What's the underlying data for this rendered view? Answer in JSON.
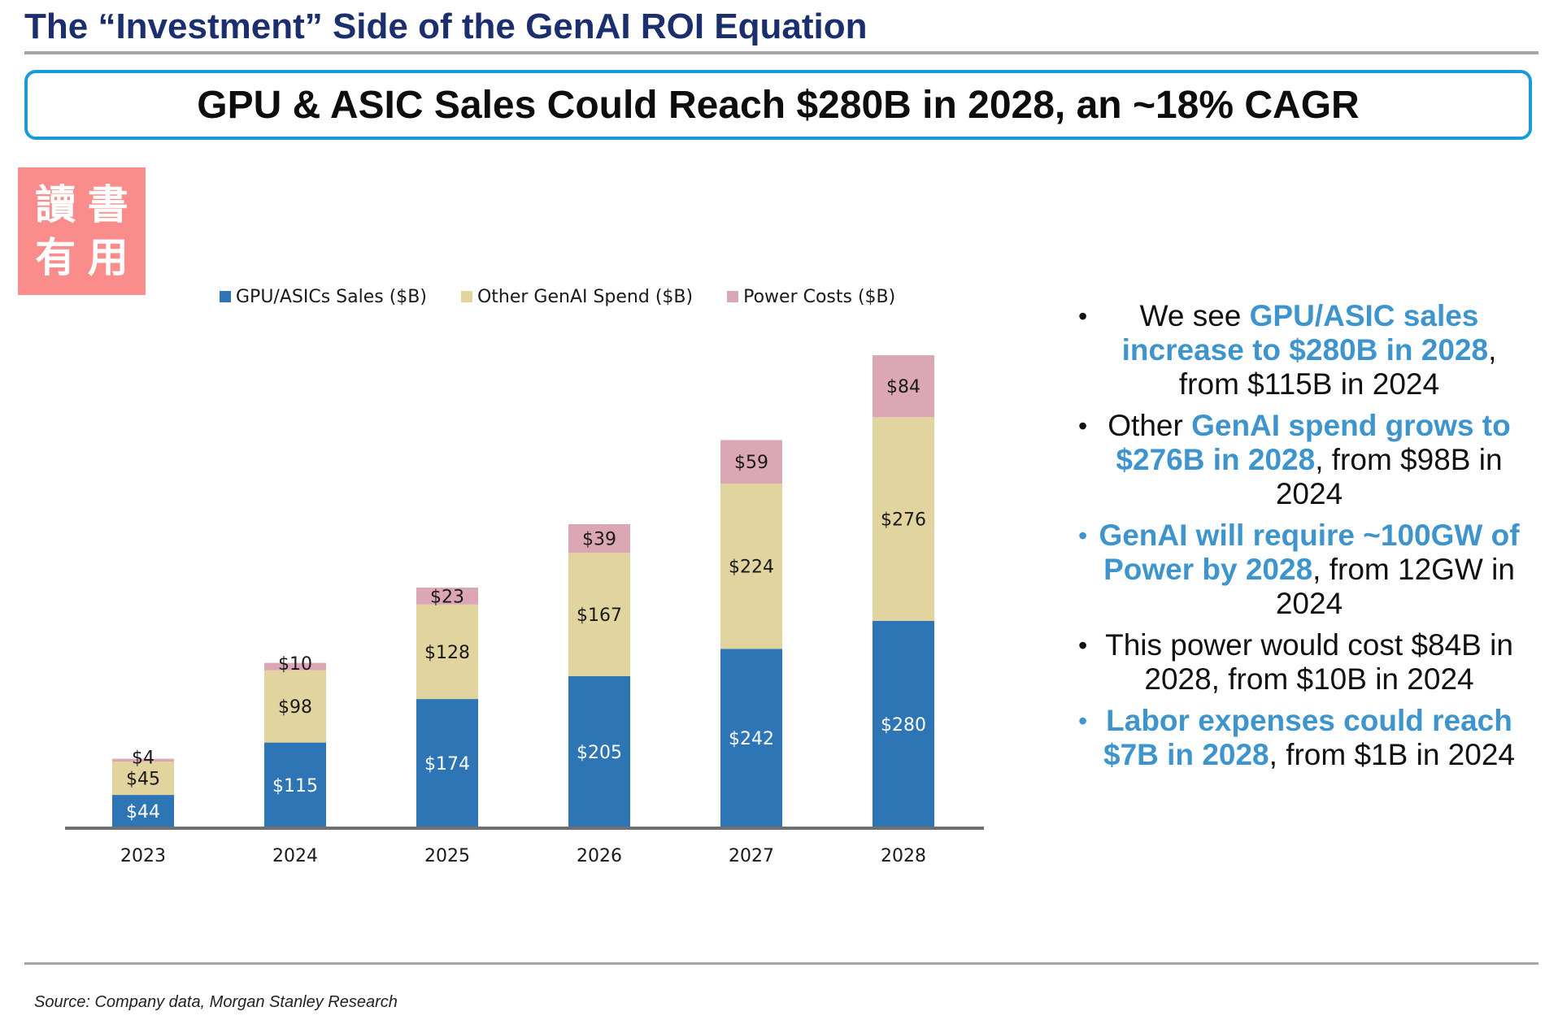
{
  "page": {
    "title": "The “Investment” Side of the GenAI ROI Equation",
    "headline": "GPU & ASIC Sales Could Reach $280B in 2028, an ~18% CAGR",
    "seal": [
      "讀",
      "書",
      "有",
      "用"
    ],
    "source": "Source: Company data, Morgan Stanley Research"
  },
  "chart_data": {
    "type": "bar",
    "stacked": true,
    "categories": [
      "2023",
      "2024",
      "2025",
      "2026",
      "2027",
      "2028"
    ],
    "series": [
      {
        "name": "GPU/ASICs Sales ($B)",
        "color": "#2e75b6",
        "label_color": "#ffffff",
        "values": [
          44,
          115,
          174,
          205,
          242,
          280
        ],
        "labels": [
          "$44",
          "$115",
          "$174",
          "$205",
          "$242",
          "$280"
        ]
      },
      {
        "name": "Other GenAI Spend ($B)",
        "color": "#e2d49e",
        "label_color": "#1a1a1a",
        "values": [
          45,
          98,
          128,
          167,
          224,
          276
        ],
        "labels": [
          "$45",
          "$98",
          "$128",
          "$167",
          "$224",
          "$276"
        ]
      },
      {
        "name": "Power Costs ($B)",
        "color": "#dca7b5",
        "label_color": "#1a1a1a",
        "values": [
          4,
          10,
          23,
          39,
          59,
          84
        ],
        "labels": [
          "$4",
          "$10",
          "$23",
          "$39",
          "$59",
          "$84"
        ]
      }
    ],
    "title": "",
    "xlabel": "",
    "ylabel": "",
    "ylim": [
      0,
      650
    ],
    "legend": "top",
    "grid": false
  },
  "bullets": [
    {
      "accent_all": false,
      "parts": [
        {
          "text": "We see ",
          "hl": false
        },
        {
          "text": "GPU/ASIC sales increase to $280B in 2028",
          "hl": true
        },
        {
          "text": ", from $115B in 2024",
          "hl": false
        }
      ]
    },
    {
      "accent_all": false,
      "parts": [
        {
          "text": "Other ",
          "hl": false
        },
        {
          "text": "GenAI spend grows to $276B in 2028",
          "hl": true
        },
        {
          "text": ", from $98B in 2024",
          "hl": false
        }
      ]
    },
    {
      "accent_all": true,
      "parts": [
        {
          "text": "GenAI will require ~100GW of Power by 2028",
          "hl": true
        },
        {
          "text": ", from 12GW in 2024",
          "hl": false
        }
      ]
    },
    {
      "accent_all": false,
      "parts": [
        {
          "text": "This power would cost $84B in 2028, from $10B in 2024",
          "hl": false
        }
      ]
    },
    {
      "accent_all": true,
      "parts": [
        {
          "text": "Labor expenses could reach $7B in 2028",
          "hl": true
        },
        {
          "text": ", from $1B in 2024",
          "hl": false
        }
      ]
    }
  ]
}
